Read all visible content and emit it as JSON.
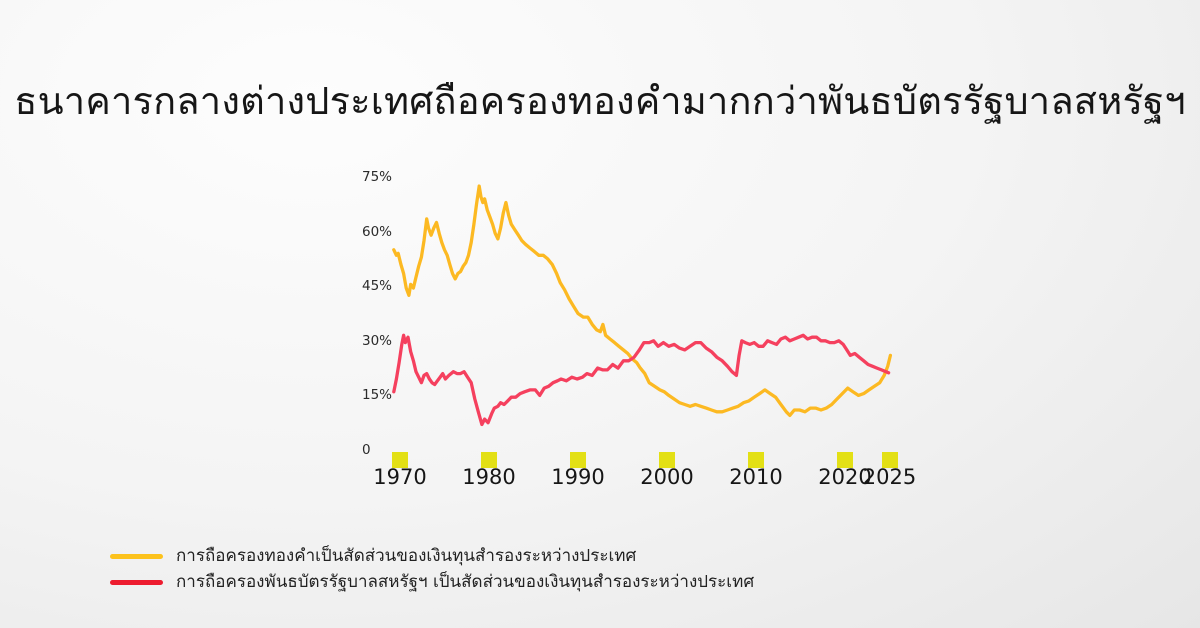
{
  "colors": {
    "background_start": "#fdfdfd",
    "background_end": "#dedede",
    "tick_marker": "#E3E015",
    "legend_gold": "#FCC21C",
    "legend_red": "#ED1C2F",
    "text": "#161616"
  },
  "chart_data": {
    "type": "line",
    "title": "ธนาคารกลางต่างประเทศถือครองทองคำมากกว่าพันธบัตรรัฐบาลสหรัฐฯ",
    "xlabel": "",
    "ylabel": "",
    "unit": "%",
    "grid": false,
    "legend_position": "bottom-left",
    "xlim": [
      1969.2,
      2025.5
    ],
    "ylim": [
      0,
      75
    ],
    "x_ticks": [
      {
        "v": 1970,
        "label": "1970"
      },
      {
        "v": 1980,
        "label": "1980"
      },
      {
        "v": 1990,
        "label": "1990"
      },
      {
        "v": 2000,
        "label": "2000"
      },
      {
        "v": 2010,
        "label": "2010"
      },
      {
        "v": 2020,
        "label": "2020"
      },
      {
        "v": 2025,
        "label": "2025"
      }
    ],
    "y_ticks": [
      {
        "v": 0,
        "label": "0"
      },
      {
        "v": 15,
        "label": "15%"
      },
      {
        "v": 30,
        "label": "30%"
      },
      {
        "v": 45,
        "label": "45%"
      },
      {
        "v": 60,
        "label": "60%"
      },
      {
        "v": 75,
        "label": "75%"
      }
    ],
    "series": [
      {
        "name": "gold-share",
        "label": "การถือครองทองคำเป็นสัดส่วนของเงินทุนสำรองระหว่างประเทศ",
        "color": "#FCB922",
        "points": [
          [
            1969.3,
            55
          ],
          [
            1969.6,
            53.5
          ],
          [
            1969.8,
            54
          ],
          [
            1970.1,
            51
          ],
          [
            1970.4,
            48.5
          ],
          [
            1970.7,
            44.5
          ],
          [
            1971.0,
            42.5
          ],
          [
            1971.2,
            45.5
          ],
          [
            1971.5,
            44.5
          ],
          [
            1971.8,
            47.5
          ],
          [
            1972.1,
            50.5
          ],
          [
            1972.4,
            53
          ],
          [
            1972.7,
            57.5
          ],
          [
            1973.0,
            63.5
          ],
          [
            1973.2,
            61
          ],
          [
            1973.5,
            59
          ],
          [
            1973.8,
            61
          ],
          [
            1974.1,
            62.5
          ],
          [
            1974.4,
            59.5
          ],
          [
            1974.7,
            57
          ],
          [
            1975.0,
            55
          ],
          [
            1975.3,
            53.5
          ],
          [
            1975.6,
            51
          ],
          [
            1975.9,
            48.5
          ],
          [
            1976.2,
            47
          ],
          [
            1976.5,
            48.5
          ],
          [
            1976.8,
            49
          ],
          [
            1977.1,
            50.5
          ],
          [
            1977.4,
            51.5
          ],
          [
            1977.7,
            53.5
          ],
          [
            1978.0,
            57
          ],
          [
            1978.3,
            62
          ],
          [
            1978.6,
            67.5
          ],
          [
            1978.9,
            72.5
          ],
          [
            1979.1,
            69.5
          ],
          [
            1979.3,
            68
          ],
          [
            1979.5,
            69
          ],
          [
            1979.8,
            66
          ],
          [
            1980.1,
            64
          ],
          [
            1980.4,
            62
          ],
          [
            1980.7,
            59.5
          ],
          [
            1981.0,
            58
          ],
          [
            1981.3,
            61
          ],
          [
            1981.6,
            65
          ],
          [
            1981.9,
            68
          ],
          [
            1982.2,
            64.5
          ],
          [
            1982.5,
            62
          ],
          [
            1982.9,
            60.5
          ],
          [
            1983.3,
            59
          ],
          [
            1983.7,
            57.5
          ],
          [
            1984.1,
            56.5
          ],
          [
            1984.6,
            55.5
          ],
          [
            1985.1,
            54.5
          ],
          [
            1985.6,
            53.5
          ],
          [
            1986.1,
            53.5
          ],
          [
            1986.6,
            52.5
          ],
          [
            1987.1,
            51
          ],
          [
            1987.6,
            48.5
          ],
          [
            1988.0,
            46
          ],
          [
            1988.5,
            44
          ],
          [
            1989.0,
            41.5
          ],
          [
            1989.5,
            39.5
          ],
          [
            1990.0,
            37.5
          ],
          [
            1990.6,
            36.5
          ],
          [
            1991.1,
            36.5
          ],
          [
            1991.6,
            34.5
          ],
          [
            1992.1,
            33
          ],
          [
            1992.5,
            32.5
          ],
          [
            1992.8,
            34.5
          ],
          [
            1993.1,
            31.5
          ],
          [
            1993.6,
            30.5
          ],
          [
            1994.1,
            29.5
          ],
          [
            1994.6,
            28.5
          ],
          [
            1995.1,
            27.5
          ],
          [
            1995.6,
            26.5
          ],
          [
            1996.1,
            25
          ],
          [
            1996.6,
            24
          ],
          [
            1997.0,
            22.5
          ],
          [
            1997.5,
            21
          ],
          [
            1998.0,
            18.5
          ],
          [
            1998.6,
            17.5
          ],
          [
            1999.2,
            16.5
          ],
          [
            1999.7,
            16
          ],
          [
            2000.2,
            15
          ],
          [
            2000.8,
            14
          ],
          [
            2001.4,
            13
          ],
          [
            2002.0,
            12.5
          ],
          [
            2002.6,
            12
          ],
          [
            2003.2,
            12.5
          ],
          [
            2003.8,
            12
          ],
          [
            2004.4,
            11.5
          ],
          [
            2005.0,
            11
          ],
          [
            2005.6,
            10.5
          ],
          [
            2006.2,
            10.5
          ],
          [
            2006.8,
            11
          ],
          [
            2007.4,
            11.5
          ],
          [
            2008.0,
            12
          ],
          [
            2008.6,
            13
          ],
          [
            2009.2,
            13.5
          ],
          [
            2009.8,
            14.5
          ],
          [
            2010.4,
            15.5
          ],
          [
            2011.0,
            16.5
          ],
          [
            2011.6,
            15.5
          ],
          [
            2012.2,
            14.5
          ],
          [
            2012.8,
            12.5
          ],
          [
            2013.4,
            10.5
          ],
          [
            2013.8,
            9.5
          ],
          [
            2014.3,
            11
          ],
          [
            2014.9,
            11
          ],
          [
            2015.5,
            10.5
          ],
          [
            2016.1,
            11.5
          ],
          [
            2016.7,
            11.5
          ],
          [
            2017.3,
            11
          ],
          [
            2017.9,
            11.5
          ],
          [
            2018.5,
            12.5
          ],
          [
            2019.1,
            14
          ],
          [
            2019.7,
            15.5
          ],
          [
            2020.3,
            17
          ],
          [
            2020.9,
            16
          ],
          [
            2021.5,
            15
          ],
          [
            2022.1,
            15.5
          ],
          [
            2022.7,
            16.5
          ],
          [
            2023.3,
            17.5
          ],
          [
            2023.9,
            18.5
          ],
          [
            2024.4,
            20.5
          ],
          [
            2024.8,
            23
          ],
          [
            2025.1,
            26
          ]
        ]
      },
      {
        "name": "treasury-share",
        "label": "การถือครองพันธบัตรรัฐบาลสหรัฐฯ เป็นสัดส่วนของเงินทุนสำรองระหว่างประเทศ",
        "color": "#F5405E",
        "points": [
          [
            1969.3,
            16
          ],
          [
            1969.6,
            19.5
          ],
          [
            1969.9,
            24
          ],
          [
            1970.2,
            29
          ],
          [
            1970.4,
            31.5
          ],
          [
            1970.6,
            29.5
          ],
          [
            1970.9,
            31
          ],
          [
            1971.2,
            27
          ],
          [
            1971.5,
            24.5
          ],
          [
            1971.8,
            21.5
          ],
          [
            1972.1,
            20
          ],
          [
            1972.4,
            18.5
          ],
          [
            1972.7,
            20.5
          ],
          [
            1973.0,
            21
          ],
          [
            1973.3,
            19.5
          ],
          [
            1973.6,
            18.5
          ],
          [
            1973.9,
            18
          ],
          [
            1974.2,
            19
          ],
          [
            1974.5,
            20
          ],
          [
            1974.8,
            21
          ],
          [
            1975.1,
            19.5
          ],
          [
            1975.5,
            20.5
          ],
          [
            1976.0,
            21.5
          ],
          [
            1976.4,
            21
          ],
          [
            1976.8,
            21
          ],
          [
            1977.2,
            21.5
          ],
          [
            1977.6,
            20
          ],
          [
            1978.0,
            18.5
          ],
          [
            1978.4,
            14
          ],
          [
            1978.8,
            10.5
          ],
          [
            1979.2,
            7
          ],
          [
            1979.5,
            8.5
          ],
          [
            1979.9,
            7.5
          ],
          [
            1980.3,
            10
          ],
          [
            1980.6,
            11.5
          ],
          [
            1981.0,
            12
          ],
          [
            1981.3,
            13
          ],
          [
            1981.7,
            12.5
          ],
          [
            1982.1,
            13.5
          ],
          [
            1982.5,
            14.5
          ],
          [
            1983.0,
            14.5
          ],
          [
            1983.5,
            15.5
          ],
          [
            1984.0,
            16
          ],
          [
            1984.6,
            16.5
          ],
          [
            1985.2,
            16.5
          ],
          [
            1985.7,
            15
          ],
          [
            1986.2,
            17
          ],
          [
            1986.7,
            17.5
          ],
          [
            1987.2,
            18.5
          ],
          [
            1987.7,
            19
          ],
          [
            1988.1,
            19.5
          ],
          [
            1988.7,
            19
          ],
          [
            1989.3,
            20
          ],
          [
            1989.9,
            19.5
          ],
          [
            1990.5,
            20
          ],
          [
            1991.0,
            21
          ],
          [
            1991.6,
            20.5
          ],
          [
            1992.2,
            22.5
          ],
          [
            1992.8,
            22
          ],
          [
            1993.3,
            22
          ],
          [
            1993.9,
            23.5
          ],
          [
            1994.5,
            22.5
          ],
          [
            1995.1,
            24.5
          ],
          [
            1995.7,
            24.5
          ],
          [
            1996.3,
            25.5
          ],
          [
            1996.9,
            27.5
          ],
          [
            1997.4,
            29.5
          ],
          [
            1998.0,
            29.5
          ],
          [
            1998.5,
            30
          ],
          [
            1999.0,
            28.5
          ],
          [
            1999.6,
            29.5
          ],
          [
            2000.2,
            28.5
          ],
          [
            2000.8,
            29
          ],
          [
            2001.4,
            28
          ],
          [
            2002.0,
            27.5
          ],
          [
            2002.6,
            28.5
          ],
          [
            2003.2,
            29.5
          ],
          [
            2003.8,
            29.5
          ],
          [
            2004.4,
            28
          ],
          [
            2005.0,
            27
          ],
          [
            2005.6,
            25.5
          ],
          [
            2006.2,
            24.5
          ],
          [
            2006.8,
            23
          ],
          [
            2007.3,
            21.5
          ],
          [
            2007.8,
            20.5
          ],
          [
            2008.1,
            26
          ],
          [
            2008.4,
            30
          ],
          [
            2008.8,
            29.5
          ],
          [
            2009.3,
            29
          ],
          [
            2009.8,
            29.5
          ],
          [
            2010.3,
            28.5
          ],
          [
            2010.8,
            28.5
          ],
          [
            2011.3,
            30
          ],
          [
            2011.8,
            29.5
          ],
          [
            2012.3,
            29
          ],
          [
            2012.8,
            30.5
          ],
          [
            2013.3,
            31
          ],
          [
            2013.8,
            30
          ],
          [
            2014.3,
            30.5
          ],
          [
            2014.8,
            31
          ],
          [
            2015.3,
            31.5
          ],
          [
            2015.8,
            30.5
          ],
          [
            2016.3,
            31
          ],
          [
            2016.8,
            31
          ],
          [
            2017.3,
            30
          ],
          [
            2017.8,
            30
          ],
          [
            2018.3,
            29.5
          ],
          [
            2018.8,
            29.5
          ],
          [
            2019.3,
            30
          ],
          [
            2019.8,
            29
          ],
          [
            2020.2,
            27.5
          ],
          [
            2020.6,
            26
          ],
          [
            2021.1,
            26.5
          ],
          [
            2021.6,
            25.5
          ],
          [
            2022.1,
            24.5
          ],
          [
            2022.6,
            23.5
          ],
          [
            2023.1,
            23
          ],
          [
            2023.6,
            22.5
          ],
          [
            2024.1,
            22
          ],
          [
            2024.6,
            21.5
          ],
          [
            2024.9,
            21.2
          ]
        ]
      }
    ]
  }
}
